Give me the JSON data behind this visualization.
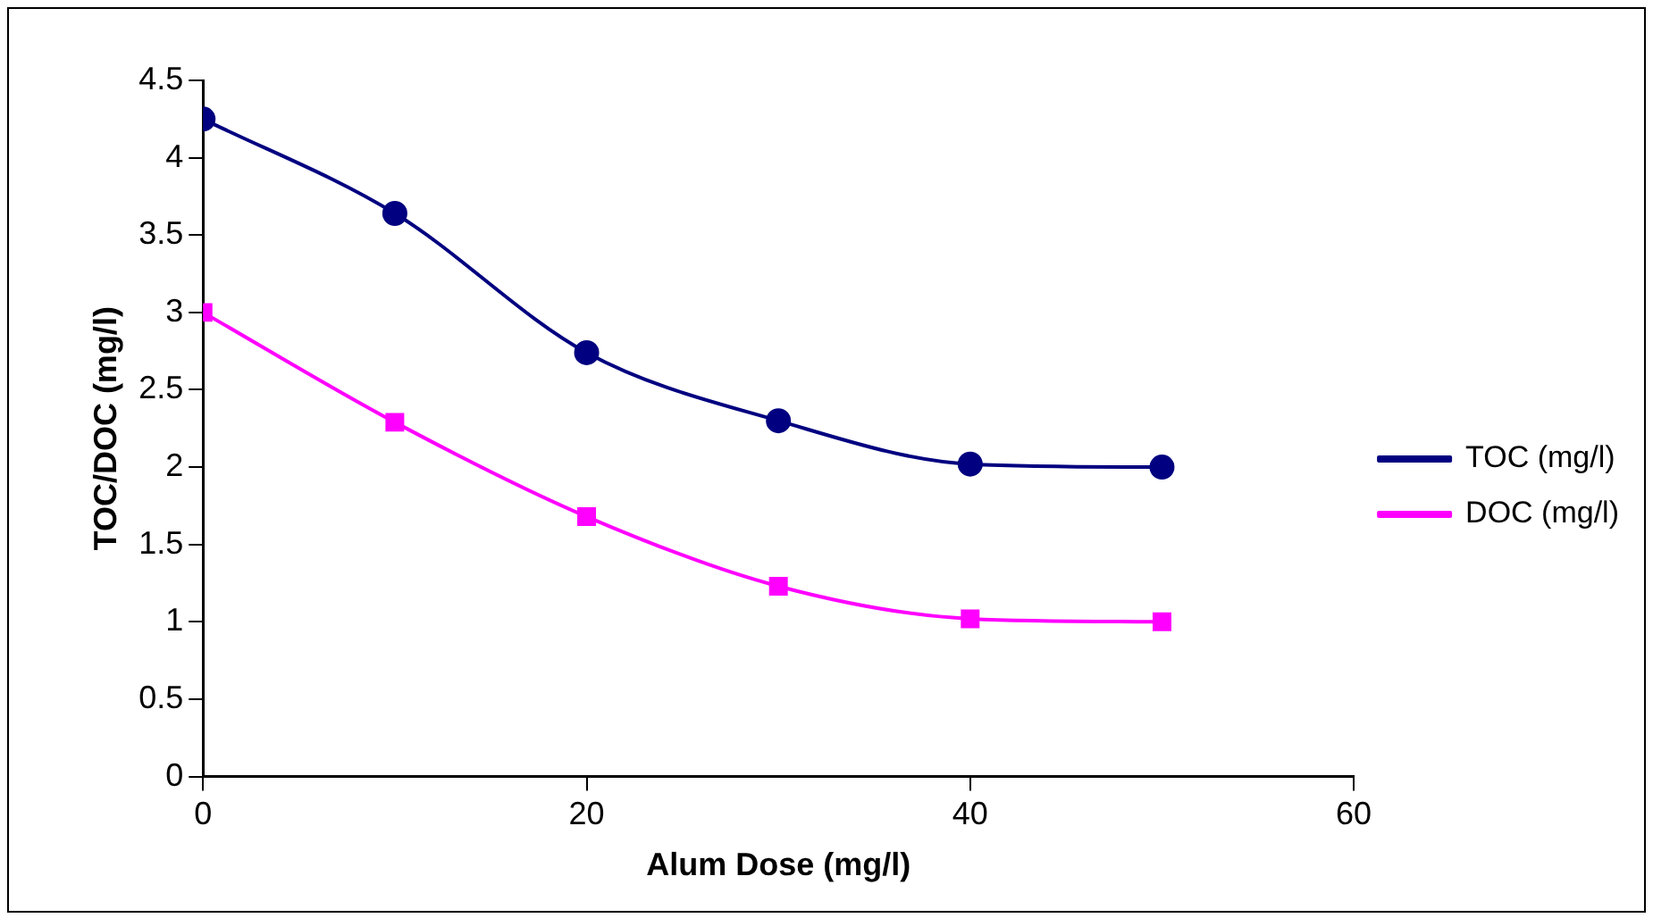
{
  "chart_data": {
    "type": "line",
    "xlabel": "Alum Dose (mg/l)",
    "ylabel": "TOC/DOC (mg/l)",
    "x": [
      0,
      10,
      20,
      30,
      40,
      50
    ],
    "series": [
      {
        "name": "TOC (mg/l)",
        "color": "#000080",
        "marker": "circle",
        "values": [
          4.25,
          3.64,
          2.74,
          2.3,
          2.02,
          2.0
        ]
      },
      {
        "name": "DOC (mg/l)",
        "color": "#ff00ff",
        "marker": "square",
        "values": [
          3.0,
          2.29,
          1.68,
          1.23,
          1.02,
          1.0
        ]
      }
    ],
    "xlim": [
      0,
      60
    ],
    "xticks": [
      0,
      20,
      40,
      60
    ],
    "ylim": [
      0,
      4.5
    ],
    "yticks": [
      0,
      0.5,
      1,
      1.5,
      2,
      2.5,
      3,
      3.5,
      4,
      4.5
    ],
    "grid": false,
    "legend": "right"
  }
}
